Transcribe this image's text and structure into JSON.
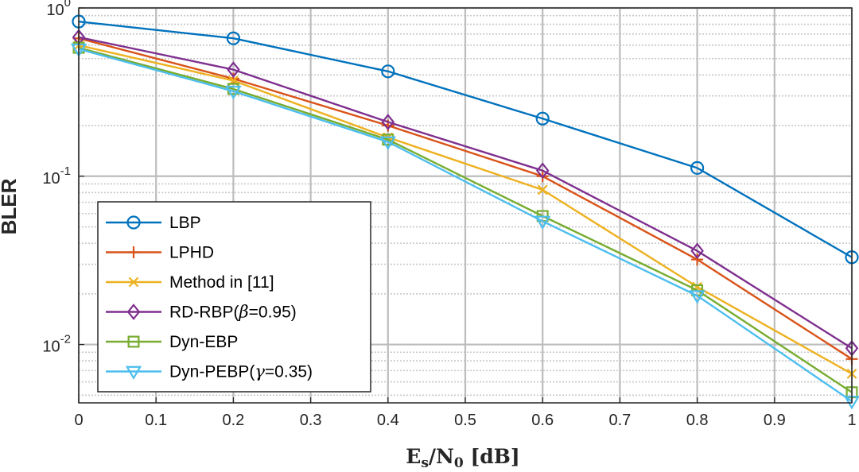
{
  "chart_data": {
    "type": "line",
    "xlabel": {
      "base": "E",
      "sub1": "s",
      "mid": "/N",
      "sub2": "0",
      "tail": " [dB]"
    },
    "ylabel": "BLER",
    "xlim": [
      0,
      1
    ],
    "ylim": [
      0.0045,
      1
    ],
    "yscale": "log",
    "grid": true,
    "legend_position": "bottom-left",
    "x_ticks": [
      "0",
      "0.1",
      "0.2",
      "0.3",
      "0.4",
      "0.5",
      "0.6",
      "0.7",
      "0.8",
      "0.9",
      "1"
    ],
    "y_ticks": [
      {
        "value": 1,
        "base": "10",
        "exp": "0"
      },
      {
        "value": 0.1,
        "base": "10",
        "exp": "-1"
      },
      {
        "value": 0.01,
        "base": "10",
        "exp": "-2"
      }
    ],
    "x": [
      0,
      0.2,
      0.4,
      0.6,
      0.8,
      1.0
    ],
    "series": [
      {
        "name": "LBP",
        "color": "#0072bd",
        "marker": "circle",
        "values": [
          0.83,
          0.66,
          0.42,
          0.22,
          0.112,
          0.033
        ]
      },
      {
        "name": "LPHD",
        "color": "#d95319",
        "marker": "plus",
        "values": [
          0.66,
          0.38,
          0.2,
          0.1,
          0.032,
          0.0082
        ]
      },
      {
        "name": "Method in [11]",
        "color": "#edb120",
        "marker": "cross",
        "values": [
          0.6,
          0.37,
          0.17,
          0.083,
          0.022,
          0.0067
        ]
      },
      {
        "name": "RD-RBP(",
        "name_symbol": "β",
        "name_suffix": "=0.95)",
        "color": "#7e2f8e",
        "marker": "diamond",
        "values": [
          0.67,
          0.43,
          0.21,
          0.108,
          0.036,
          0.0095
        ]
      },
      {
        "name": "Dyn-EBP",
        "color": "#77ac30",
        "marker": "square",
        "values": [
          0.58,
          0.33,
          0.165,
          0.058,
          0.021,
          0.0052
        ]
      },
      {
        "name": "Dyn-PEBP(",
        "name_symbol": "γ",
        "name_suffix": "=0.35)",
        "color": "#4dbeee",
        "marker": "triangle-down",
        "values": [
          0.57,
          0.32,
          0.16,
          0.054,
          0.0195,
          0.0046
        ]
      }
    ]
  }
}
